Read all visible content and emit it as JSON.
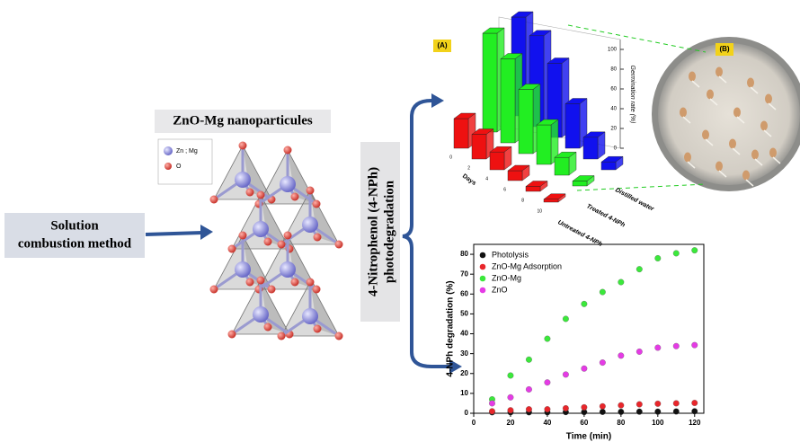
{
  "diagram": {
    "method": [
      "Solution",
      "combustion method"
    ],
    "nanoparticles_title": "ZnO-Mg nanoparticules",
    "legend": [
      "Zn ; Mg",
      "O"
    ],
    "process": [
      "4-Nitrophenol (4-NPh)",
      "photodegradation"
    ],
    "photo_label": "(B)"
  },
  "chart_data": [
    {
      "type": "bar3d",
      "panel_label": "(A)",
      "y_label": "Germination rate (%)",
      "x_label": "Days",
      "categories": [
        "0",
        "2",
        "4",
        "6",
        "8",
        "10"
      ],
      "series": [
        {
          "name": "Untreated 4-NPh",
          "color": "#ee1111",
          "values": [
            30,
            25,
            18,
            10,
            5,
            3
          ]
        },
        {
          "name": "Treated 4-NPh",
          "color": "#22ee22",
          "values": [
            100,
            85,
            65,
            40,
            18,
            5
          ]
        },
        {
          "name": "Distilled water",
          "color": "#1111ee",
          "values": [
            100,
            92,
            75,
            45,
            22,
            8
          ]
        }
      ],
      "ylim": [
        0,
        110
      ],
      "yticks": [
        0,
        20,
        40,
        60,
        80,
        100
      ]
    },
    {
      "type": "scatter",
      "x_label": "Time (min)",
      "y_label": "4-NPh degradation (%)",
      "x": [
        10,
        20,
        30,
        40,
        50,
        60,
        70,
        80,
        90,
        100,
        110,
        120
      ],
      "series": [
        {
          "name": "Photolysis",
          "color": "#111111",
          "values": [
            0.5,
            0.5,
            0.5,
            0.5,
            0.6,
            0.6,
            0.7,
            0.7,
            0.8,
            0.8,
            0.9,
            1
          ]
        },
        {
          "name": "ZnO-Mg Adsorption",
          "color": "#e8262b",
          "values": [
            1,
            1.5,
            2,
            2,
            2.5,
            3,
            3.5,
            4,
            4.5,
            4.8,
            5,
            5.2
          ]
        },
        {
          "name": "ZnO-Mg",
          "color": "#3be83b",
          "values": [
            7,
            19,
            27,
            37.5,
            47.5,
            55,
            61,
            66,
            72.5,
            78,
            80.5,
            82
          ]
        },
        {
          "name": "ZnO",
          "color": "#e53be5",
          "values": [
            5,
            8,
            12,
            15.5,
            19.5,
            22.5,
            25.5,
            29,
            31,
            33,
            33.8,
            34.3
          ]
        }
      ],
      "xlim": [
        0,
        125
      ],
      "xticks": [
        0,
        20,
        40,
        60,
        80,
        100,
        120
      ],
      "ylim": [
        0,
        85
      ],
      "yticks": [
        0,
        10,
        20,
        30,
        40,
        50,
        60,
        70,
        80
      ]
    }
  ]
}
